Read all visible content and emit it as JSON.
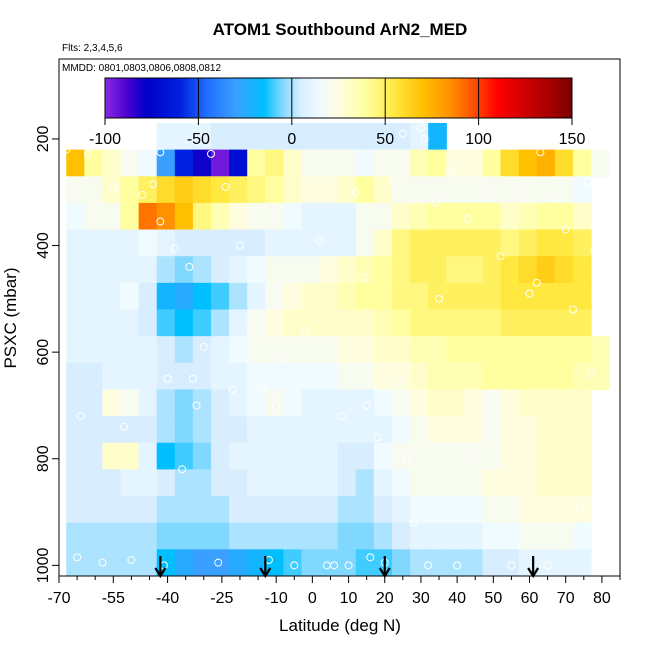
{
  "chart_data": {
    "type": "heatmap",
    "title": "ATOM1 Southbound ArN2_MED",
    "flights_note": "Flts: 2,3,4,5,6",
    "dates_note": "MMDD: 0801,0803,0806,0808,0812",
    "xlabel": "Latitude (deg N)",
    "ylabel": "PSXC (mbar)",
    "xlim": [
      -70,
      85
    ],
    "ylim": [
      1020,
      50
    ],
    "x_tick_values": [
      -70,
      -55,
      -40,
      -25,
      -10,
      0,
      10,
      20,
      30,
      40,
      50,
      60,
      70,
      80
    ],
    "x_tick_labels": [
      "-70",
      "-55",
      "-40",
      "-25",
      "-10",
      "0",
      "10",
      "20",
      "30",
      "40",
      "50",
      "60",
      "70",
      "80"
    ],
    "x_minor_ticks": [
      -65,
      -60,
      -50,
      -45,
      -35,
      -30,
      -20,
      -15,
      -5,
      5,
      15,
      25,
      35,
      45,
      55,
      65,
      75,
      85
    ],
    "y_tick_values": [
      200,
      400,
      600,
      800,
      1000
    ],
    "y_tick_labels": [
      "200",
      "400",
      "600",
      "800",
      "1000"
    ],
    "colorbar": {
      "range": [
        -100,
        150
      ],
      "tick_values": [
        -100,
        -50,
        0,
        50,
        100,
        150
      ],
      "tick_labels": [
        "-100",
        "-50",
        "0",
        "50",
        "100",
        "150"
      ],
      "gradient_stops": [
        {
          "value": -100,
          "color": "#8a2be2"
        },
        {
          "value": -88,
          "color": "#4b00d0"
        },
        {
          "value": -78,
          "color": "#0000c8"
        },
        {
          "value": -60,
          "color": "#0020e0"
        },
        {
          "value": -45,
          "color": "#2070ff"
        },
        {
          "value": -30,
          "color": "#3aa0ff"
        },
        {
          "value": -15,
          "color": "#00bfff"
        },
        {
          "value": -5,
          "color": "#80d8ff"
        },
        {
          "value": 5,
          "color": "#d8eeff"
        },
        {
          "value": 15,
          "color": "#f0fbff"
        },
        {
          "value": 25,
          "color": "#fffde0"
        },
        {
          "value": 40,
          "color": "#ffffa0"
        },
        {
          "value": 55,
          "color": "#ffe840"
        },
        {
          "value": 70,
          "color": "#ffc000"
        },
        {
          "value": 85,
          "color": "#ff9000"
        },
        {
          "value": 100,
          "color": "#ff4000"
        },
        {
          "value": 110,
          "color": "#ff0000"
        },
        {
          "value": 125,
          "color": "#cc0000"
        },
        {
          "value": 140,
          "color": "#a00000"
        },
        {
          "value": 150,
          "color": "#7a0000"
        }
      ]
    },
    "latitude_bins": [
      -68,
      -63,
      -58,
      -53,
      -48,
      -43,
      -38,
      -33,
      -28,
      -23,
      -18,
      -13,
      -8,
      -3,
      2,
      7,
      12,
      17,
      22,
      27,
      32,
      37,
      42,
      47,
      52,
      57,
      62,
      67,
      72,
      77,
      82
    ],
    "pressure_bins": [
      170,
      220,
      270,
      320,
      370,
      420,
      470,
      520,
      570,
      620,
      670,
      720,
      770,
      820,
      870,
      920,
      970,
      1020
    ],
    "values": [
      [
        null,
        null,
        null,
        null,
        null,
        10,
        10,
        10,
        5,
        5,
        5,
        5,
        5,
        5,
        5,
        5,
        5,
        5,
        5,
        10,
        -20,
        null,
        null,
        null,
        null,
        null,
        null,
        null,
        null,
        null
      ],
      [
        70,
        40,
        30,
        20,
        15,
        -30,
        -60,
        -80,
        -95,
        -70,
        40,
        45,
        30,
        20,
        20,
        20,
        15,
        20,
        20,
        35,
        40,
        25,
        25,
        40,
        60,
        70,
        75,
        60,
        40,
        20
      ],
      [
        20,
        20,
        30,
        40,
        50,
        60,
        65,
        60,
        55,
        50,
        45,
        40,
        30,
        25,
        25,
        30,
        40,
        30,
        20,
        20,
        20,
        20,
        20,
        20,
        20,
        20,
        20,
        20,
        15,
        null
      ],
      [
        15,
        20,
        20,
        40,
        90,
        85,
        70,
        45,
        35,
        25,
        20,
        20,
        15,
        10,
        10,
        10,
        20,
        20,
        30,
        35,
        40,
        40,
        40,
        40,
        30,
        35,
        40,
        40,
        30,
        null
      ],
      [
        10,
        10,
        10,
        10,
        15,
        10,
        5,
        5,
        5,
        5,
        5,
        10,
        10,
        10,
        10,
        10,
        20,
        30,
        45,
        50,
        50,
        50,
        50,
        50,
        45,
        50,
        55,
        55,
        50,
        null
      ],
      [
        10,
        10,
        10,
        10,
        10,
        0,
        -5,
        0,
        5,
        10,
        15,
        20,
        20,
        20,
        25,
        30,
        35,
        40,
        45,
        50,
        50,
        45,
        45,
        50,
        55,
        60,
        65,
        60,
        55,
        null
      ],
      [
        10,
        10,
        10,
        15,
        5,
        -20,
        -25,
        -15,
        -10,
        0,
        10,
        20,
        25,
        30,
        30,
        35,
        40,
        40,
        45,
        45,
        50,
        50,
        50,
        50,
        55,
        55,
        55,
        55,
        55,
        null
      ],
      [
        10,
        10,
        10,
        10,
        5,
        -10,
        -15,
        -10,
        0,
        10,
        20,
        25,
        30,
        30,
        30,
        30,
        30,
        35,
        40,
        45,
        45,
        45,
        45,
        45,
        50,
        50,
        50,
        50,
        50,
        null
      ],
      [
        10,
        10,
        10,
        10,
        10,
        5,
        0,
        5,
        10,
        15,
        20,
        20,
        20,
        20,
        20,
        25,
        25,
        30,
        30,
        35,
        35,
        40,
        40,
        40,
        40,
        40,
        40,
        40,
        40,
        35
      ],
      [
        5,
        5,
        10,
        10,
        10,
        5,
        5,
        5,
        10,
        10,
        15,
        15,
        15,
        15,
        15,
        20,
        20,
        25,
        25,
        30,
        35,
        35,
        35,
        40,
        40,
        40,
        40,
        40,
        35,
        35
      ],
      [
        5,
        5,
        25,
        20,
        10,
        0,
        -5,
        0,
        5,
        10,
        15,
        20,
        15,
        10,
        10,
        10,
        10,
        15,
        20,
        25,
        30,
        30,
        25,
        20,
        25,
        30,
        30,
        30,
        30,
        null
      ],
      [
        5,
        5,
        5,
        5,
        5,
        0,
        -5,
        0,
        5,
        5,
        10,
        10,
        10,
        10,
        10,
        10,
        10,
        10,
        15,
        20,
        25,
        25,
        25,
        20,
        25,
        25,
        30,
        30,
        30,
        null
      ],
      [
        5,
        5,
        30,
        30,
        10,
        -15,
        -10,
        -5,
        5,
        10,
        10,
        10,
        10,
        10,
        10,
        5,
        5,
        15,
        20,
        20,
        20,
        20,
        20,
        20,
        25,
        25,
        30,
        30,
        30,
        null
      ],
      [
        5,
        5,
        5,
        10,
        10,
        5,
        0,
        0,
        5,
        5,
        10,
        10,
        10,
        10,
        10,
        5,
        0,
        10,
        15,
        20,
        20,
        20,
        20,
        25,
        25,
        25,
        30,
        30,
        30,
        null
      ],
      [
        5,
        5,
        5,
        5,
        5,
        0,
        0,
        0,
        0,
        5,
        5,
        5,
        5,
        5,
        5,
        0,
        0,
        5,
        10,
        15,
        15,
        15,
        15,
        20,
        20,
        25,
        25,
        25,
        25,
        null
      ],
      [
        0,
        0,
        0,
        0,
        0,
        -5,
        -5,
        -5,
        -5,
        0,
        0,
        0,
        0,
        0,
        0,
        -5,
        -5,
        0,
        5,
        10,
        10,
        10,
        10,
        15,
        15,
        20,
        20,
        20,
        15,
        null
      ],
      [
        0,
        0,
        0,
        0,
        0,
        -15,
        -25,
        -30,
        -30,
        -25,
        -20,
        -15,
        -10,
        -5,
        -5,
        -5,
        -10,
        -10,
        -5,
        0,
        0,
        0,
        0,
        5,
        5,
        10,
        10,
        10,
        10,
        null
      ]
    ],
    "sample_points": [
      [
        -68,
        220
      ],
      [
        -62,
        228
      ],
      [
        -64,
        720
      ],
      [
        -65,
        985
      ],
      [
        -58,
        995
      ],
      [
        -55,
        290
      ],
      [
        -52,
        740
      ],
      [
        -50,
        990
      ],
      [
        -47,
        305
      ],
      [
        -44,
        285
      ],
      [
        -42,
        225
      ],
      [
        -41,
        1000
      ],
      [
        -42,
        355
      ],
      [
        -40,
        650
      ],
      [
        -38,
        405
      ],
      [
        -36,
        820
      ],
      [
        -34,
        440
      ],
      [
        -33,
        650
      ],
      [
        -32,
        700
      ],
      [
        -30,
        590
      ],
      [
        -28,
        228
      ],
      [
        -26,
        995
      ],
      [
        -24,
        290
      ],
      [
        -22,
        670
      ],
      [
        -20,
        400
      ],
      [
        -17,
        560
      ],
      [
        -14,
        670
      ],
      [
        -12,
        990
      ],
      [
        -10,
        700
      ],
      [
        -8,
        610
      ],
      [
        -5,
        1000
      ],
      [
        -2,
        560
      ],
      [
        2,
        390
      ],
      [
        4,
        1000
      ],
      [
        6,
        1000
      ],
      [
        8,
        720
      ],
      [
        10,
        1000
      ],
      [
        12,
        300
      ],
      [
        14,
        460
      ],
      [
        15,
        700
      ],
      [
        16,
        985
      ],
      [
        18,
        760
      ],
      [
        20,
        995
      ],
      [
        22,
        280
      ],
      [
        24,
        660
      ],
      [
        25,
        190
      ],
      [
        26,
        800
      ],
      [
        28,
        920
      ],
      [
        30,
        180
      ],
      [
        31,
        200
      ],
      [
        32,
        1000
      ],
      [
        34,
        320
      ],
      [
        35,
        500
      ],
      [
        38,
        260
      ],
      [
        40,
        1000
      ],
      [
        43,
        350
      ],
      [
        45,
        790
      ],
      [
        48,
        300
      ],
      [
        50,
        680
      ],
      [
        52,
        420
      ],
      [
        55,
        1000
      ],
      [
        58,
        300
      ],
      [
        60,
        490
      ],
      [
        62,
        470
      ],
      [
        63,
        225
      ],
      [
        65,
        1000
      ],
      [
        67,
        310
      ],
      [
        70,
        370
      ],
      [
        72,
        520
      ],
      [
        74,
        890
      ],
      [
        76,
        280
      ],
      [
        77,
        640
      ],
      [
        78,
        410
      ],
      [
        79,
        700
      ]
    ],
    "arrow_latitudes": [
      -42,
      -13,
      20,
      61
    ]
  }
}
